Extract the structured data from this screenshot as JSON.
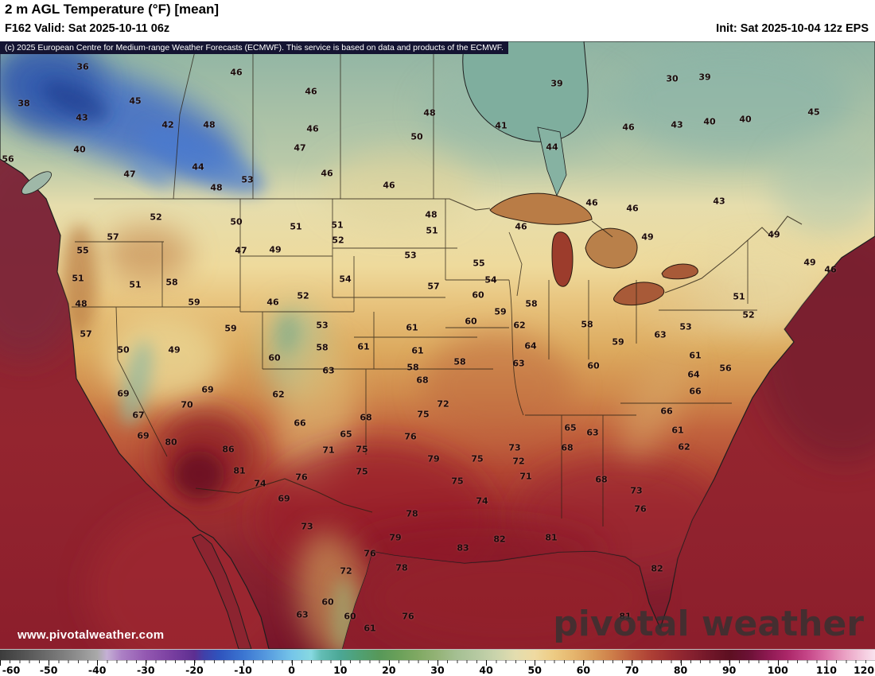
{
  "header": {
    "title": "2 m AGL Temperature (°F) [mean]",
    "valid": "F162 Valid: Sat 2025-10-11 06z",
    "init": "Init: Sat 2025-10-04 12z EPS"
  },
  "copyright": "(c) 2025 European Centre for Medium-range Weather Forecasts (ECMWF). This service is based on data and products of the ECMWF.",
  "watermark": {
    "url": "www.pivotalweather.com",
    "logo": "pivotal weather"
  },
  "chart_data": {
    "type": "heatmap",
    "title": "2 m AGL Temperature (°F) [mean]",
    "parameter": "2 m AGL Temperature",
    "units": "°F",
    "model": "EPS",
    "forecast_hour": "F162",
    "valid_time": "Sat 2025-10-11 06z",
    "init_time": "Sat 2025-10-04 12z",
    "colorbar": {
      "min": -60,
      "max": 120,
      "tick_step": 10,
      "ticks": [
        -60,
        -50,
        -40,
        -30,
        -20,
        -10,
        0,
        10,
        20,
        30,
        40,
        50,
        60,
        70,
        80,
        90,
        100,
        110,
        120
      ],
      "stops": [
        [
          -60,
          "#3c3c3c"
        ],
        [
          -55,
          "#545454"
        ],
        [
          -50,
          "#6e6e6e"
        ],
        [
          -45,
          "#898989"
        ],
        [
          -40,
          "#a9a9a9"
        ],
        [
          -38,
          "#c5b0d5"
        ],
        [
          -35,
          "#ac80c5"
        ],
        [
          -30,
          "#9358b1"
        ],
        [
          -25,
          "#7b40a1"
        ],
        [
          -20,
          "#5d2e91"
        ],
        [
          -18,
          "#4040a9"
        ],
        [
          -15,
          "#2f53bd"
        ],
        [
          -10,
          "#3b75d1"
        ],
        [
          -5,
          "#579bdf"
        ],
        [
          0,
          "#75c5e9"
        ],
        [
          4,
          "#87d9e1"
        ],
        [
          6,
          "#63bdb5"
        ],
        [
          10,
          "#4ba795"
        ],
        [
          14,
          "#50a073"
        ],
        [
          18,
          "#579859"
        ],
        [
          22,
          "#6aa059"
        ],
        [
          26,
          "#80a963"
        ],
        [
          30,
          "#94b377"
        ],
        [
          34,
          "#a5c093"
        ],
        [
          38,
          "#b5c9a1"
        ],
        [
          42,
          "#cad4ac"
        ],
        [
          46,
          "#e3ddaf"
        ],
        [
          50,
          "#efdaa1"
        ],
        [
          54,
          "#edcb83"
        ],
        [
          58,
          "#e5b56d"
        ],
        [
          62,
          "#d99b59"
        ],
        [
          66,
          "#cd7d49"
        ],
        [
          70,
          "#bd5b3d"
        ],
        [
          74,
          "#ad3f35"
        ],
        [
          78,
          "#9b2d31"
        ],
        [
          82,
          "#87212f"
        ],
        [
          86,
          "#711729"
        ],
        [
          90,
          "#5d0f21"
        ],
        [
          94,
          "#6b1135"
        ],
        [
          98,
          "#8d1951"
        ],
        [
          102,
          "#ab2769"
        ],
        [
          106,
          "#c54587"
        ],
        [
          110,
          "#db71a7"
        ],
        [
          114,
          "#eba3c5"
        ],
        [
          118,
          "#f5cee1"
        ],
        [
          120,
          "#fae3ef"
        ]
      ]
    },
    "surface_values": [
      [
        36,
        104,
        84
      ],
      [
        46,
        297,
        91
      ],
      [
        39,
        700,
        105
      ],
      [
        30,
        845,
        99
      ],
      [
        39,
        886,
        97
      ],
      [
        38,
        30,
        130
      ],
      [
        45,
        170,
        127
      ],
      [
        43,
        103,
        148
      ],
      [
        46,
        391,
        115
      ],
      [
        42,
        211,
        157
      ],
      [
        48,
        263,
        157
      ],
      [
        46,
        393,
        162
      ],
      [
        48,
        540,
        142
      ],
      [
        41,
        630,
        158
      ],
      [
        40,
        100,
        188
      ],
      [
        47,
        377,
        186
      ],
      [
        44,
        694,
        185
      ],
      [
        46,
        790,
        160
      ],
      [
        43,
        851,
        157
      ],
      [
        40,
        892,
        153
      ],
      [
        40,
        937,
        150
      ],
      [
        45,
        1023,
        141
      ],
      [
        47,
        163,
        219
      ],
      [
        44,
        249,
        210
      ],
      [
        46,
        411,
        218
      ],
      [
        50,
        524,
        172
      ],
      [
        48,
        272,
        236
      ],
      [
        46,
        489,
        233
      ],
      [
        53,
        311,
        226
      ],
      [
        56,
        10,
        200
      ],
      [
        46,
        744,
        255
      ],
      [
        43,
        904,
        253
      ],
      [
        46,
        655,
        285
      ],
      [
        46,
        795,
        262
      ],
      [
        48,
        542,
        270
      ],
      [
        51,
        543,
        290
      ],
      [
        49,
        814,
        298
      ],
      [
        49,
        973,
        295
      ],
      [
        49,
        1018,
        330
      ],
      [
        46,
        1044,
        339
      ],
      [
        52,
        196,
        273
      ],
      [
        50,
        297,
        279
      ],
      [
        57,
        142,
        298
      ],
      [
        55,
        104,
        315
      ],
      [
        47,
        303,
        315
      ],
      [
        49,
        346,
        314
      ],
      [
        51,
        372,
        285
      ],
      [
        51,
        424,
        283
      ],
      [
        52,
        425,
        302
      ],
      [
        53,
        516,
        321
      ],
      [
        55,
        602,
        331
      ],
      [
        54,
        617,
        352
      ],
      [
        57,
        545,
        360
      ],
      [
        51,
        98,
        350
      ],
      [
        51,
        170,
        358
      ],
      [
        58,
        216,
        355
      ],
      [
        54,
        434,
        351
      ],
      [
        48,
        102,
        382
      ],
      [
        59,
        244,
        380
      ],
      [
        46,
        343,
        380
      ],
      [
        52,
        381,
        372
      ],
      [
        57,
        108,
        420
      ],
      [
        50,
        155,
        440
      ],
      [
        49,
        219,
        440
      ],
      [
        59,
        290,
        413
      ],
      [
        53,
        405,
        409
      ],
      [
        58,
        405,
        437
      ],
      [
        60,
        345,
        450
      ],
      [
        63,
        413,
        466
      ],
      [
        61,
        457,
        436
      ],
      [
        61,
        518,
        412
      ],
      [
        60,
        601,
        371
      ],
      [
        60,
        592,
        404
      ],
      [
        59,
        629,
        392
      ],
      [
        58,
        668,
        382
      ],
      [
        62,
        653,
        409
      ],
      [
        64,
        667,
        435
      ],
      [
        63,
        652,
        457
      ],
      [
        61,
        525,
        441
      ],
      [
        58,
        519,
        462
      ],
      [
        68,
        531,
        478
      ],
      [
        58,
        578,
        455
      ],
      [
        58,
        738,
        408
      ],
      [
        59,
        777,
        430
      ],
      [
        60,
        746,
        460
      ],
      [
        63,
        830,
        421
      ],
      [
        53,
        862,
        411
      ],
      [
        51,
        929,
        373
      ],
      [
        52,
        941,
        396
      ],
      [
        56,
        912,
        463
      ],
      [
        61,
        874,
        447
      ],
      [
        64,
        872,
        471
      ],
      [
        66,
        874,
        492
      ],
      [
        66,
        838,
        517
      ],
      [
        61,
        852,
        541
      ],
      [
        62,
        860,
        562
      ],
      [
        65,
        717,
        538
      ],
      [
        63,
        745,
        544
      ],
      [
        68,
        713,
        563
      ],
      [
        68,
        756,
        603
      ],
      [
        69,
        155,
        495
      ],
      [
        67,
        174,
        522
      ],
      [
        69,
        180,
        548
      ],
      [
        80,
        215,
        556
      ],
      [
        86,
        287,
        565
      ],
      [
        81,
        301,
        592
      ],
      [
        70,
        235,
        509
      ],
      [
        69,
        261,
        490
      ],
      [
        62,
        350,
        496
      ],
      [
        66,
        377,
        532
      ],
      [
        68,
        460,
        525
      ],
      [
        65,
        435,
        546
      ],
      [
        71,
        413,
        566
      ],
      [
        72,
        557,
        508
      ],
      [
        75,
        532,
        521
      ],
      [
        76,
        516,
        549
      ],
      [
        75,
        455,
        565
      ],
      [
        79,
        545,
        577
      ],
      [
        75,
        600,
        577
      ],
      [
        73,
        647,
        563
      ],
      [
        72,
        652,
        580
      ],
      [
        71,
        661,
        599
      ],
      [
        74,
        327,
        608
      ],
      [
        76,
        379,
        600
      ],
      [
        75,
        455,
        593
      ],
      [
        69,
        357,
        627
      ],
      [
        73,
        386,
        662
      ],
      [
        78,
        518,
        646
      ],
      [
        74,
        606,
        630
      ],
      [
        75,
        575,
        605
      ],
      [
        79,
        497,
        676
      ],
      [
        76,
        465,
        696
      ],
      [
        83,
        582,
        689
      ],
      [
        82,
        628,
        678
      ],
      [
        81,
        693,
        676
      ],
      [
        72,
        435,
        718
      ],
      [
        78,
        505,
        714
      ],
      [
        60,
        412,
        757
      ],
      [
        63,
        380,
        773
      ],
      [
        60,
        440,
        775
      ],
      [
        61,
        465,
        790
      ],
      [
        76,
        513,
        775
      ],
      [
        73,
        800,
        617
      ],
      [
        76,
        805,
        640
      ],
      [
        82,
        826,
        715
      ],
      [
        81,
        786,
        775
      ]
    ]
  }
}
